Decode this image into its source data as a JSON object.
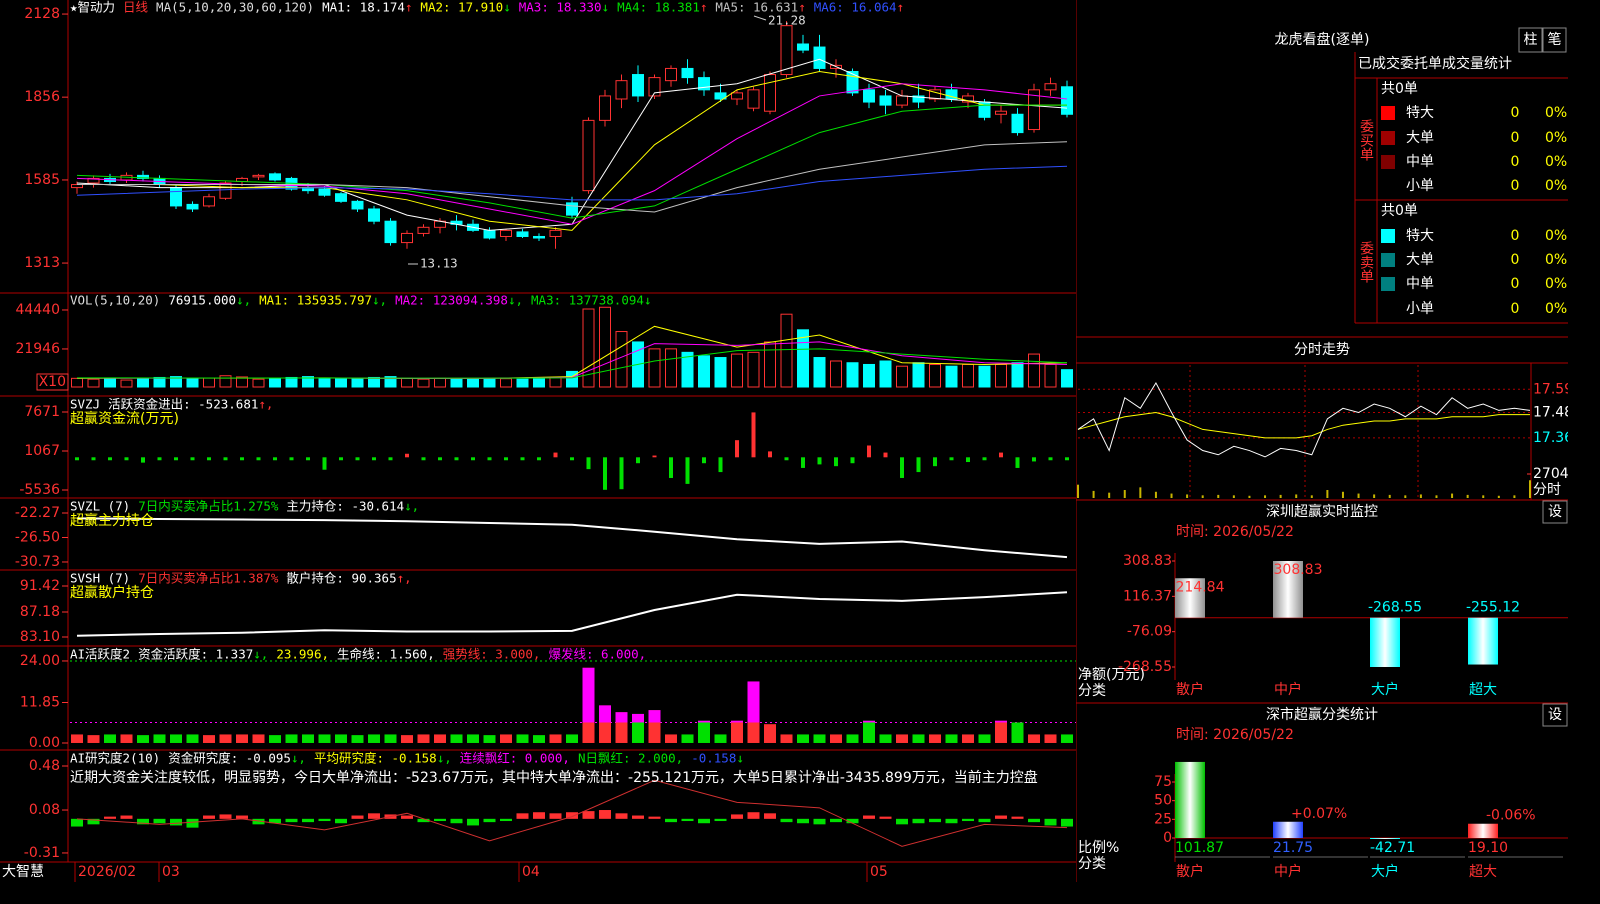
{
  "x_index": [
    0,
    5,
    10,
    15,
    20,
    25,
    30,
    35,
    40,
    45,
    50,
    55,
    60
  ],
  "main": {
    "header": [
      {
        "text": "★智动力",
        "color": "#ffffff"
      },
      {
        "text": "日线",
        "color": "#ff3232"
      },
      {
        "text": "MA(5,10,20,30,60,120)",
        "color": "#dddddd"
      },
      {
        "text": "MA1: 18.174",
        "arrow": "↑",
        "color": "#ffffff"
      },
      {
        "text": "MA2: 17.910",
        "arrow": "↓",
        "color": "#ffff00"
      },
      {
        "text": "MA3: 18.330",
        "arrow": "↓",
        "color": "#ff00ff"
      },
      {
        "text": "MA4: 18.381",
        "arrow": "↑",
        "color": "#00e000"
      },
      {
        "text": "MA5: 16.631",
        "arrow": "↑",
        "color": "#c0c0c0"
      },
      {
        "text": "MA6: 16.064",
        "arrow": "↑",
        "color": "#3050ff"
      }
    ],
    "yticks": [
      2128,
      1856,
      1585,
      1313
    ],
    "ylim": [
      1215,
      2174
    ],
    "high_label": "21.28",
    "low_label": "13.13",
    "candles": [
      [
        1560,
        1580,
        1540,
        1570
      ],
      [
        1575,
        1600,
        1560,
        1590
      ],
      [
        1590,
        1605,
        1570,
        1580
      ],
      [
        1585,
        1610,
        1575,
        1600
      ],
      [
        1600,
        1615,
        1580,
        1590
      ],
      [
        1590,
        1600,
        1560,
        1570
      ],
      [
        1560,
        1570,
        1490,
        1500
      ],
      [
        1505,
        1515,
        1480,
        1490
      ],
      [
        1500,
        1540,
        1495,
        1530
      ],
      [
        1525,
        1580,
        1520,
        1575
      ],
      [
        1580,
        1595,
        1565,
        1590
      ],
      [
        1595,
        1605,
        1585,
        1600
      ],
      [
        1605,
        1610,
        1580,
        1585
      ],
      [
        1590,
        1595,
        1550,
        1555
      ],
      [
        1560,
        1575,
        1540,
        1550
      ],
      [
        1555,
        1565,
        1530,
        1535
      ],
      [
        1540,
        1545,
        1510,
        1515
      ],
      [
        1515,
        1520,
        1480,
        1490
      ],
      [
        1490,
        1500,
        1440,
        1450
      ],
      [
        1450,
        1460,
        1370,
        1380
      ],
      [
        1380,
        1420,
        1360,
        1410
      ],
      [
        1410,
        1440,
        1400,
        1430
      ],
      [
        1430,
        1460,
        1410,
        1450
      ],
      [
        1450,
        1470,
        1420,
        1440
      ],
      [
        1440,
        1455,
        1415,
        1420
      ],
      [
        1420,
        1430,
        1390,
        1395
      ],
      [
        1400,
        1425,
        1385,
        1420
      ],
      [
        1415,
        1425,
        1395,
        1400
      ],
      [
        1400,
        1410,
        1385,
        1395
      ],
      [
        1400,
        1430,
        1360,
        1420
      ],
      [
        1510,
        1530,
        1460,
        1470
      ],
      [
        1550,
        1790,
        1540,
        1780
      ],
      [
        1780,
        1880,
        1760,
        1860
      ],
      [
        1850,
        1930,
        1820,
        1910
      ],
      [
        1930,
        1960,
        1840,
        1860
      ],
      [
        1860,
        1930,
        1850,
        1920
      ],
      [
        1910,
        1960,
        1890,
        1950
      ],
      [
        1950,
        1980,
        1900,
        1920
      ],
      [
        1920,
        1940,
        1860,
        1880
      ],
      [
        1870,
        1900,
        1840,
        1850
      ],
      [
        1850,
        1880,
        1830,
        1870
      ],
      [
        1820,
        1890,
        1810,
        1880
      ],
      [
        1810,
        1940,
        1800,
        1930
      ],
      [
        1930,
        2105,
        1920,
        2090
      ],
      [
        2030,
        2060,
        2000,
        2010
      ],
      [
        2020,
        2060,
        1940,
        1950
      ],
      [
        1950,
        1980,
        1920,
        1960
      ],
      [
        1940,
        1950,
        1860,
        1870
      ],
      [
        1880,
        1900,
        1820,
        1840
      ],
      [
        1860,
        1880,
        1800,
        1830
      ],
      [
        1830,
        1880,
        1820,
        1860
      ],
      [
        1860,
        1900,
        1820,
        1840
      ],
      [
        1850,
        1890,
        1840,
        1880
      ],
      [
        1880,
        1900,
        1840,
        1850
      ],
      [
        1840,
        1870,
        1820,
        1860
      ],
      [
        1840,
        1850,
        1780,
        1790
      ],
      [
        1800,
        1830,
        1770,
        1810
      ],
      [
        1800,
        1820,
        1730,
        1740
      ],
      [
        1750,
        1900,
        1740,
        1880
      ],
      [
        1880,
        1920,
        1860,
        1900
      ],
      [
        1890,
        1910,
        1790,
        1800
      ]
    ],
    "ma_lines": [
      {
        "color": "#ffffff",
        "values": [
          1575,
          1560,
          1560,
          1570,
          1470,
          1420,
          1440,
          1870,
          1900,
          1980,
          1860,
          1840,
          1820
        ]
      },
      {
        "color": "#ffff00",
        "values": [
          1570,
          1570,
          1560,
          1560,
          1520,
          1450,
          1420,
          1700,
          1880,
          1940,
          1900,
          1830,
          1830
        ]
      },
      {
        "color": "#ff00ff",
        "values": [
          1590,
          1580,
          1570,
          1565,
          1540,
          1490,
          1440,
          1550,
          1720,
          1860,
          1900,
          1880,
          1850
        ]
      },
      {
        "color": "#00e000",
        "values": [
          1600,
          1590,
          1580,
          1570,
          1550,
          1510,
          1460,
          1500,
          1620,
          1740,
          1810,
          1830,
          1830
        ]
      },
      {
        "color": "#c0c0c0",
        "values": [
          1570,
          1570,
          1570,
          1570,
          1560,
          1530,
          1500,
          1480,
          1560,
          1620,
          1660,
          1700,
          1710
        ]
      },
      {
        "color": "#3050ff",
        "values": [
          1535,
          1545,
          1555,
          1560,
          1555,
          1540,
          1520,
          1520,
          1540,
          1580,
          1600,
          1620,
          1630
        ]
      }
    ]
  },
  "vol": {
    "header": [
      {
        "text": "VOL(5,10,20)",
        "color": "#dddddd"
      },
      {
        "text": "76915.000",
        "arrow": "↓,",
        "color": "#ffffff"
      },
      {
        "text": "MA1: 135935.797",
        "arrow": "↓,",
        "color": "#ffff00"
      },
      {
        "text": "MA2: 123094.398",
        "arrow": "↓,",
        "color": "#ff00ff"
      },
      {
        "text": "MA3: 137738.094",
        "arrow": "↓",
        "color": "#00e000"
      }
    ],
    "yticks": [
      44440,
      21946
    ],
    "unit_label": "X10",
    "ylim": [
      0,
      52500
    ],
    "values": [
      5000,
      4500,
      5200,
      4000,
      4800,
      5500,
      6000,
      5000,
      5200,
      6500,
      5800,
      4500,
      5000,
      5500,
      6000,
      5200,
      4800,
      5000,
      5500,
      6000,
      5000,
      4500,
      5000,
      4800,
      4500,
      5000,
      4800,
      4500,
      4600,
      5500,
      9000,
      45000,
      46000,
      32000,
      26000,
      22000,
      22000,
      20000,
      18000,
      17000,
      19000,
      20000,
      26000,
      42000,
      33000,
      17000,
      15000,
      14000,
      13000,
      15000,
      12000,
      14000,
      13000,
      12000,
      13000,
      12000,
      13000,
      14000,
      19000,
      13000,
      10000
    ],
    "ma_lines": [
      {
        "color": "#ffff00",
        "values": [
          5000,
          5200,
          5100,
          5300,
          4900,
          5000,
          6000,
          35000,
          23000,
          30000,
          14000,
          13000,
          14000
        ]
      },
      {
        "color": "#ff00ff",
        "values": [
          5200,
          5100,
          5200,
          5200,
          5000,
          5000,
          5500,
          25000,
          24000,
          26000,
          18000,
          14000,
          13000
        ]
      },
      {
        "color": "#00e000",
        "values": [
          5300,
          5200,
          5200,
          5200,
          5100,
          5100,
          5300,
          15000,
          21000,
          22000,
          19000,
          16000,
          14000
        ]
      }
    ]
  },
  "svzj": {
    "header": [
      {
        "text": "SVZJ",
        "color": "#ffffff"
      },
      {
        "text": "活跃资金进出: -523.681",
        "arrow": "↑,",
        "color": "#ffffff"
      }
    ],
    "subtitle": "超赢资金流(万元)",
    "yticks": [
      7671,
      1067,
      -5536
    ],
    "ylim": [
      -6550,
      9870
    ],
    "values": [
      -500,
      -500,
      -500,
      -500,
      -900,
      -500,
      -500,
      -500,
      -500,
      -500,
      -500,
      -500,
      -500,
      -500,
      -500,
      -2100,
      -500,
      -500,
      -500,
      -500,
      600,
      -500,
      -500,
      -500,
      -500,
      -500,
      -500,
      -500,
      -500,
      800,
      -500,
      -2000,
      -5500,
      -5400,
      -1000,
      300,
      -3500,
      -4500,
      -1000,
      -2500,
      2900,
      7600,
      1000,
      -500,
      -1800,
      -1200,
      -1500,
      -1000,
      2000,
      800,
      -3500,
      -2500,
      -1500,
      -500,
      -800,
      -500,
      800,
      -1800,
      -700,
      -500,
      -500
    ]
  },
  "svzl": {
    "header": [
      {
        "text": "SVZL (7)",
        "color": "#ffffff"
      },
      {
        "text": "7日内买卖净占比1.275%",
        "color": "#00e000"
      },
      {
        "text": "主力持仓: -30.614",
        "arrow": "↓,",
        "color": "#ffffff"
      }
    ],
    "subtitle": "超赢主力持仓",
    "yticks": [
      -22.27,
      {
        "value": -26.5,
        "label": "-26.50"
      },
      -30.73
    ],
    "ylim": [
      -31.77,
      -20.37
    ],
    "lines": [
      {
        "color": "#ffffff",
        "values": [
          -23.2,
          -23.3,
          -23.4,
          -23.5,
          -23.7,
          -24.0,
          -24.3,
          -25.5,
          -26.8,
          -27.6,
          -27.2,
          -28.7,
          -29.9
        ]
      }
    ]
  },
  "svsh": {
    "header": [
      {
        "text": "SVSH (7)",
        "color": "#ffffff"
      },
      {
        "text": "7日内买卖净占比1.387%",
        "color": "#ff3232"
      },
      {
        "text": "散户持仓: 90.365",
        "arrow": "↑,",
        "color": "#ffffff"
      }
    ],
    "subtitle": "超赢散户持仓",
    "yticks": [
      91.42,
      87.18,
      {
        "value": 83.1,
        "label": "83.10"
      }
    ],
    "ylim": [
      81.96,
      93.54
    ],
    "lines": [
      {
        "color": "#ffffff",
        "values": [
          83.3,
          83.6,
          83.8,
          84.2,
          84.0,
          84.0,
          84.1,
          87.5,
          90.0,
          89.3,
          89.0,
          89.6,
          90.4
        ]
      }
    ]
  },
  "act": {
    "header": [
      {
        "text": "AI活跃度2",
        "color": "#ffffff"
      },
      {
        "text": "资金活跃度: 1.337",
        "arrow": "↓,",
        "color": "#ffffff"
      },
      {
        "text": "23.996,",
        "color": "#ffff00"
      },
      {
        "text": "生命线: 1.560,",
        "color": "#ffffff"
      },
      {
        "text": "强势线: 3.000,",
        "color": "#ff3232"
      },
      {
        "text": "爆发线: 6.000,",
        "color": "#ff00ff"
      }
    ],
    "yticks": [
      {
        "value": 24,
        "label": "24.00"
      },
      11.85,
      {
        "value": 0,
        "label": "0.00"
      }
    ],
    "ylim": [
      -1.76,
      27.5
    ],
    "burst_line": 6,
    "values": [
      2.5,
      2.3,
      2.5,
      2.5,
      2.3,
      2.5,
      2.5,
      2.5,
      2.3,
      2.5,
      2.5,
      2.5,
      2.3,
      2.5,
      2.5,
      2.5,
      2.5,
      2.3,
      2.5,
      2.5,
      2.3,
      2.5,
      2.5,
      2.5,
      2.5,
      2.3,
      2.5,
      2.5,
      2.3,
      2.5,
      2.5,
      22,
      11,
      9,
      8.5,
      9.6,
      2.5,
      2.5,
      6.5,
      2.5,
      6.5,
      18,
      5.5,
      2.5,
      2.5,
      2.5,
      2.5,
      2.5,
      6.5,
      2.5,
      2.5,
      2.5,
      2.5,
      2.5,
      2.5,
      2.5,
      6.5,
      6,
      2.5,
      2.5,
      2.5
    ]
  },
  "res": {
    "header": [
      {
        "text": "AI研究度2(10)",
        "color": "#ffffff"
      },
      {
        "text": "资金研究度: -0.095",
        "arrow": "↓,",
        "color": "#ffffff"
      },
      {
        "text": "平均研究度: -0.158",
        "arrow": "↓,",
        "color": "#ffff00"
      },
      {
        "text": "连续飘红: 0.000,",
        "color": "#ff00ff"
      },
      {
        "text": "N日飘红: 2.000,",
        "color": "#00e000"
      },
      {
        "text": "-0.158",
        "arrow": "↓",
        "color": "#3050ff"
      }
    ],
    "comment": "近期大资金关注度较低，明显弱势，今日大单净流出：-523.67万元，其中特大单净流出：-255.121万元，大单5日累计净出-3435.899万元，当前主力控盘",
    "yticks": [
      0.48,
      0.08,
      -0.31
    ],
    "ylim": [
      -0.374,
      0.598
    ],
    "values": [
      -0.07,
      -0.05,
      0.02,
      0.03,
      -0.05,
      -0.04,
      -0.06,
      -0.08,
      0.03,
      0.04,
      0.03,
      -0.05,
      -0.04,
      -0.03,
      -0.03,
      -0.02,
      -0.04,
      0.03,
      0.05,
      0.04,
      0.03,
      -0.03,
      -0.02,
      -0.04,
      -0.06,
      -0.03,
      -0.02,
      0.05,
      0.06,
      0.05,
      0.06,
      0.07,
      0.08,
      0.05,
      0.03,
      0.02,
      -0.03,
      -0.02,
      -0.04,
      -0.02,
      0.04,
      0.06,
      0.05,
      -0.03,
      -0.04,
      -0.05,
      -0.03,
      -0.04,
      0.03,
      0.02,
      -0.05,
      -0.04,
      -0.03,
      -0.04,
      -0.02,
      -0.03,
      0.03,
      0.02,
      -0.03,
      -0.06,
      -0.07
    ],
    "lines": [
      {
        "color": "#d03030",
        "values": [
          0.0,
          -0.05,
          0.0,
          -0.1,
          0.05,
          -0.2,
          0.02,
          0.35,
          0.15,
          0.1,
          -0.25,
          -0.05,
          -0.08
        ]
      }
    ]
  },
  "timeline": {
    "brand": "大智慧",
    "dates": [
      "2026/02",
      "03",
      "04",
      "05"
    ]
  },
  "dragon": {
    "title": "龙虎看盘(逐单)",
    "buttons": [
      "柱",
      "笔"
    ],
    "subtitle": "已成交委托单成交量统计",
    "buy": {
      "label": "委买单",
      "total": "共0单",
      "rows": [
        {
          "name": "特大",
          "count": 0,
          "pct": "0%",
          "color": "#ff0000"
        },
        {
          "name": "大单",
          "count": 0,
          "pct": "0%",
          "color": "#a00000"
        },
        {
          "name": "中单",
          "count": 0,
          "pct": "0%",
          "color": "#800000"
        },
        {
          "name": "小单",
          "count": 0,
          "pct": "0%",
          "color": null
        }
      ]
    },
    "sell": {
      "label": "委卖单",
      "total": "共0单",
      "rows": [
        {
          "name": "特大",
          "count": 0,
          "pct": "0%",
          "color": "#00ffff"
        },
        {
          "name": "大单",
          "count": 0,
          "pct": "0%",
          "color": "#008080"
        },
        {
          "name": "中单",
          "count": 0,
          "pct": "0%",
          "color": "#008080"
        },
        {
          "name": "小单",
          "count": 0,
          "pct": "0%",
          "color": null
        }
      ]
    }
  },
  "intraday": {
    "title": "分时走势",
    "ylim": [
      17.17,
      17.705
    ],
    "yticks": [
      17.59,
      17.48,
      17.36
    ],
    "ytick_colors": [
      "#ff3232",
      "#ffffff",
      "#00ffff"
    ],
    "vol_ylim": [
      0,
      2704
    ],
    "vol_yticks": [
      2704
    ],
    "vol_label": "分时",
    "price": [
      17.4,
      17.45,
      17.3,
      17.55,
      17.5,
      17.62,
      17.48,
      17.35,
      17.3,
      17.28,
      17.32,
      17.3,
      17.27,
      17.31,
      17.3,
      17.28,
      17.45,
      17.5,
      17.48,
      17.52,
      17.5,
      17.46,
      17.51,
      17.47,
      17.55,
      17.5,
      17.52,
      17.49,
      17.5,
      17.49
    ],
    "avg": [
      17.4,
      17.42,
      17.44,
      17.46,
      17.47,
      17.48,
      17.46,
      17.43,
      17.4,
      17.39,
      17.38,
      17.37,
      17.36,
      17.36,
      17.36,
      17.37,
      17.4,
      17.42,
      17.43,
      17.44,
      17.44,
      17.45,
      17.45,
      17.45,
      17.46,
      17.46,
      17.46,
      17.47,
      17.47,
      17.47
    ],
    "volume": [
      1500,
      800,
      600,
      900,
      1200,
      700,
      500,
      400,
      300,
      350,
      300,
      250,
      300,
      350,
      400,
      300,
      900,
      700,
      500,
      400,
      350,
      300,
      400,
      300,
      500,
      350,
      300,
      250,
      300,
      2000
    ]
  },
  "monitor": {
    "title": "深圳超赢实时监控",
    "button": "设",
    "time": "时间: 2026/05/22",
    "ylabel": "净额(万元)",
    "xlabel": "分类",
    "yticks": [
      308.83,
      116.37,
      -76.09,
      -268.55
    ],
    "ylim": [
      -268.55,
      308.83
    ],
    "categories": [
      "散户",
      "中户",
      "大户",
      "超大"
    ],
    "category_colors": [
      "#ff3232",
      "#ff3232",
      "#00ffff",
      "#00ffff"
    ],
    "bar_colors": [
      "#909090",
      "#909090",
      "#00ffff",
      "#00ffff"
    ],
    "values": [
      214.84,
      308.83,
      -268.55,
      -255.12
    ]
  },
  "stats": {
    "title": "深市超赢分类统计",
    "button": "设",
    "time": "时间: 2026/05/22",
    "ylabel": "比例%",
    "xlabel": "分类",
    "yticks": [
      75,
      50,
      25,
      0
    ],
    "ylim": [
      0,
      75
    ],
    "categories": [
      "散户",
      "中户",
      "大户",
      "超大"
    ],
    "category_colors": [
      "#ff3232",
      "#ff3232",
      "#00ffff",
      "#ff3232"
    ],
    "bar_colors": [
      "#00c000",
      "#2040ff",
      "#00ffff",
      "#ff2020"
    ],
    "label_colors": [
      "#00e000",
      "#3060ff",
      "#00ffff",
      "#ff3232"
    ],
    "values": [
      101.87,
      21.75,
      -42.71,
      19.1
    ],
    "value_labels": [
      "101.87",
      "21.75",
      "-42.71",
      "19.10"
    ],
    "annotations": [
      null,
      "+0.07%",
      null,
      "-0.06%"
    ]
  }
}
